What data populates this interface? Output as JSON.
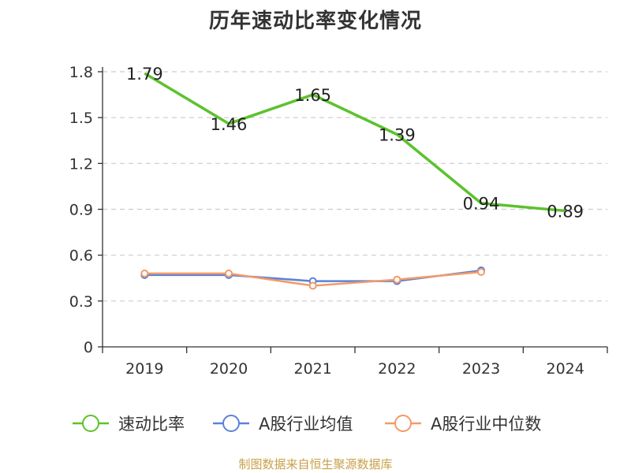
{
  "chart_data": {
    "type": "line",
    "title": "历年速动比率变化情况",
    "categories": [
      "2019",
      "2020",
      "2021",
      "2022",
      "2023",
      "2024"
    ],
    "ylim": [
      0,
      1.8
    ],
    "yticks": [
      "0",
      "0.3",
      "0.6",
      "0.9",
      "1.2",
      "1.5",
      "1.8"
    ],
    "grid": true,
    "legend_position": "bottom",
    "series": [
      {
        "name": "速动比率",
        "color": "#5cc22d",
        "values": [
          1.79,
          1.46,
          1.65,
          1.39,
          0.94,
          0.89
        ],
        "labels": [
          "1.79",
          "1.46",
          "1.65",
          "1.39",
          "0.94",
          "0.89"
        ]
      },
      {
        "name": "A股行业均值",
        "color": "#5b82d8",
        "values": [
          0.47,
          0.47,
          0.43,
          0.43,
          0.5,
          null
        ]
      },
      {
        "name": "A股行业中位数",
        "color": "#f39a67",
        "values": [
          0.48,
          0.48,
          0.4,
          0.44,
          0.49,
          null
        ]
      }
    ]
  },
  "source": "制图数据来自恒生聚源数据库"
}
